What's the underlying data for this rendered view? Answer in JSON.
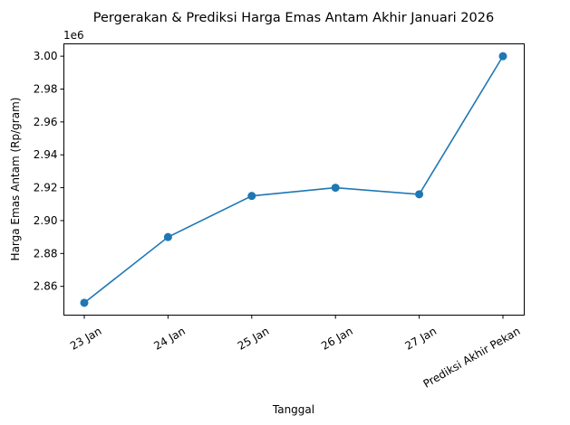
{
  "chart_data": {
    "type": "line",
    "title": "Pergerakan & Prediksi Harga Emas Antam Akhir Januari 2026",
    "xlabel": "Tanggal",
    "ylabel": "Harga Emas Antam (Rp/gram)",
    "y_offset_label": "1e6",
    "categories": [
      "23 Jan",
      "24 Jan",
      "25 Jan",
      "26 Jan",
      "27 Jan",
      "Prediksi Akhir Pekan"
    ],
    "series": [
      {
        "name": "Harga Emas Antam",
        "values": [
          2850000,
          2890000,
          2915000,
          2920000,
          2916000,
          3000000
        ],
        "color": "#1f77b4",
        "marker": "circle"
      }
    ],
    "yticks": [
      2.86,
      2.88,
      2.9,
      2.92,
      2.94,
      2.96,
      2.98,
      3.0
    ],
    "ytick_labels": [
      "2.86",
      "2.88",
      "2.90",
      "2.92",
      "2.94",
      "2.96",
      "2.98",
      "3.00"
    ],
    "ylim": [
      2842500,
      3007500
    ],
    "grid": false,
    "legend": false,
    "xtick_rotation": 30
  }
}
